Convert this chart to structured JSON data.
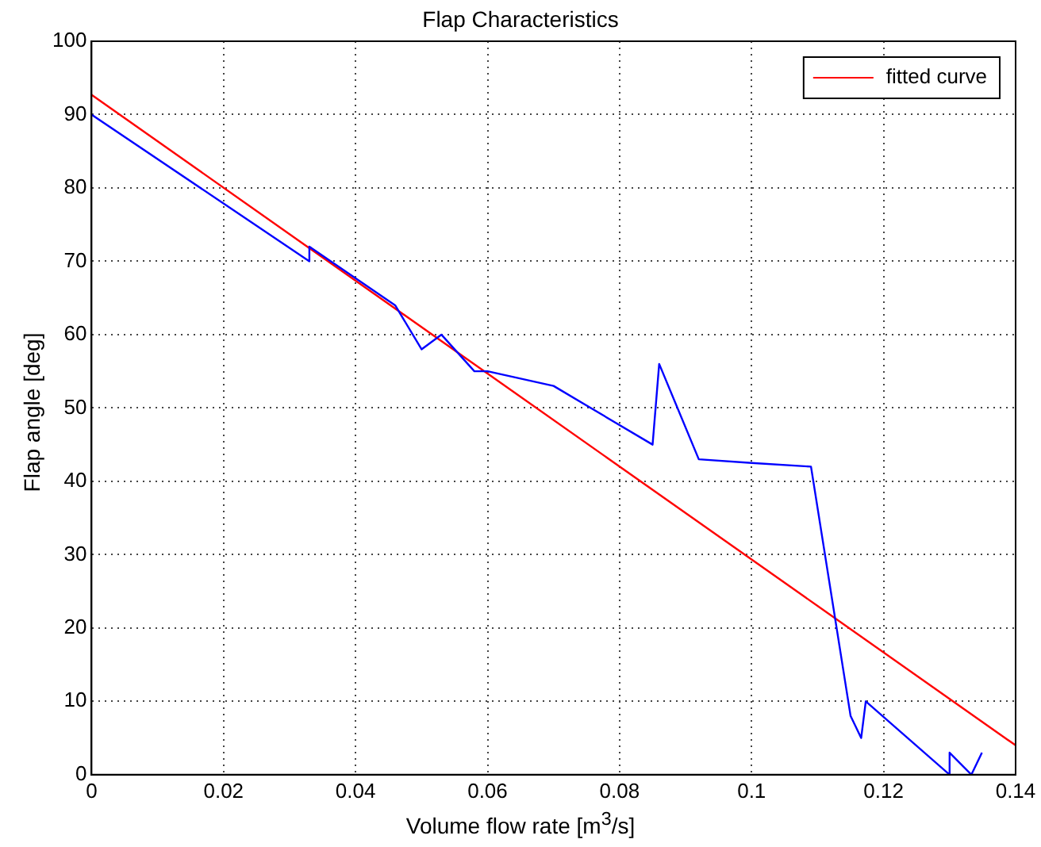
{
  "chart_data": {
    "type": "line",
    "title": "Flap Characteristics",
    "xlabel": "Volume flow rate [m$^{3}$/s]",
    "ylabel": "Flap angle [deg]",
    "series": [
      {
        "color": "#0000ff",
        "x": [
          0,
          0.033,
          0.033,
          0.046,
          0.05,
          0.053,
          0.058,
          0.06,
          0.07,
          0.085,
          0.086,
          0.092,
          0.1,
          0.109,
          0.115,
          0.1166,
          0.1173,
          0.13,
          0.13,
          0.1333,
          0.1349
        ],
        "values": [
          90,
          70,
          72,
          64,
          58,
          60,
          55,
          55,
          53,
          45,
          56,
          43,
          42.5,
          42,
          8,
          5,
          10,
          0,
          3,
          0,
          3
        ]
      },
      {
        "name": "fitted curve",
        "color": "#ff0000",
        "x": [
          0,
          0.14
        ],
        "values": [
          92.7,
          4
        ]
      }
    ],
    "xlim": [
      0,
      0.14
    ],
    "xticks": [
      0,
      0.02,
      0.04,
      0.06,
      0.08,
      0.1,
      0.12,
      0.14
    ],
    "ylim": [
      0,
      100
    ],
    "yticks": [
      0,
      10,
      20,
      30,
      40,
      50,
      60,
      70,
      80,
      90,
      100
    ],
    "grid": true,
    "legend": "top right",
    "marker": "none",
    "line_style": "solid"
  }
}
